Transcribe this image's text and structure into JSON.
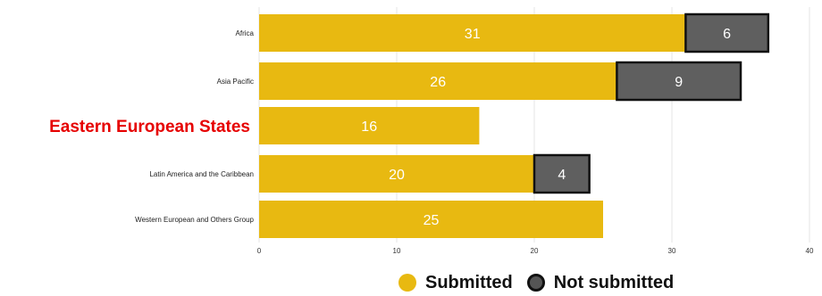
{
  "chart_data": {
    "type": "bar",
    "orientation": "horizontal",
    "stacked": true,
    "categories": [
      "Africa",
      "Asia Pacific",
      "Eastern European States",
      "Latin America and the Caribbean",
      "Western European and Others Group"
    ],
    "highlighted_category": "Eastern European States",
    "series": [
      {
        "name": "Submitted",
        "values": [
          31,
          26,
          16,
          20,
          25
        ],
        "color": "#e8b911"
      },
      {
        "name": "Not submitted",
        "values": [
          6,
          9,
          0,
          4,
          0
        ],
        "color": "#5f5f5f"
      }
    ],
    "data_labels": [
      [
        "31",
        "26",
        "16",
        "20",
        "25"
      ],
      [
        "6",
        "9",
        "",
        "4",
        ""
      ]
    ],
    "x_ticks": [
      "0",
      "10",
      "20",
      "30",
      "40"
    ],
    "xlim": [
      0,
      40
    ],
    "grid": true,
    "legend_position": "bottom"
  },
  "legend": {
    "submitted": "Submitted",
    "not_submitted": "Not submitted"
  }
}
